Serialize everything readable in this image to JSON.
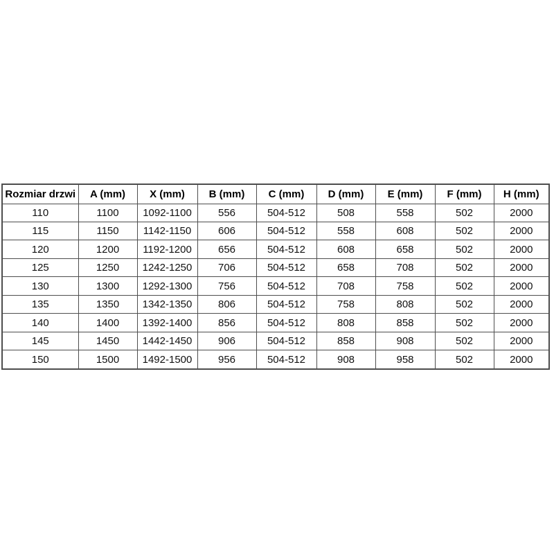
{
  "table": {
    "headers": [
      "Rozmiar drzwi",
      "A (mm)",
      "X (mm)",
      "B (mm)",
      "C (mm)",
      "D (mm)",
      "E (mm)",
      "F (mm)",
      "H (mm)"
    ],
    "rows": [
      [
        "110",
        "1100",
        "1092-1100",
        "556",
        "504-512",
        "508",
        "558",
        "502",
        "2000"
      ],
      [
        "115",
        "1150",
        "1142-1150",
        "606",
        "504-512",
        "558",
        "608",
        "502",
        "2000"
      ],
      [
        "120",
        "1200",
        "1192-1200",
        "656",
        "504-512",
        "608",
        "658",
        "502",
        "2000"
      ],
      [
        "125",
        "1250",
        "1242-1250",
        "706",
        "504-512",
        "658",
        "708",
        "502",
        "2000"
      ],
      [
        "130",
        "1300",
        "1292-1300",
        "756",
        "504-512",
        "708",
        "758",
        "502",
        "2000"
      ],
      [
        "135",
        "1350",
        "1342-1350",
        "806",
        "504-512",
        "758",
        "808",
        "502",
        "2000"
      ],
      [
        "140",
        "1400",
        "1392-1400",
        "856",
        "504-512",
        "808",
        "858",
        "502",
        "2000"
      ],
      [
        "145",
        "1450",
        "1442-1450",
        "906",
        "504-512",
        "858",
        "908",
        "502",
        "2000"
      ],
      [
        "150",
        "1500",
        "1492-1500",
        "956",
        "504-512",
        "908",
        "958",
        "502",
        "2000"
      ]
    ]
  },
  "colors": {
    "border": "#4d4d4d",
    "text": "#111111",
    "background": "#ffffff"
  }
}
